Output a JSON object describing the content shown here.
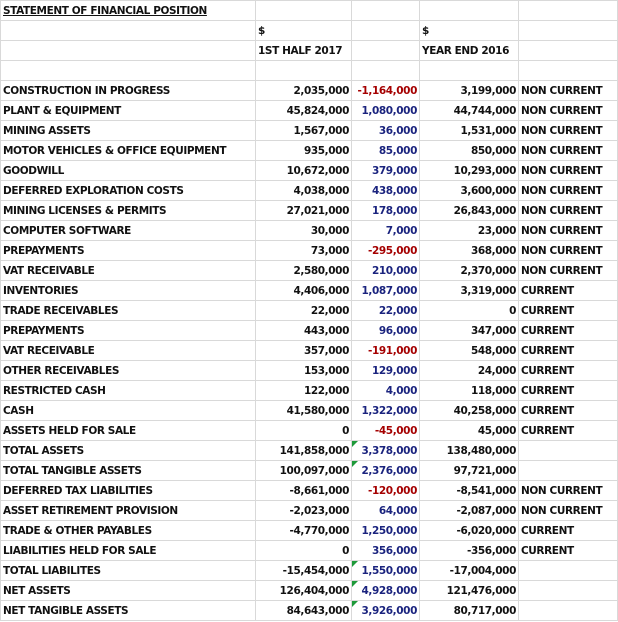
{
  "sheet": {
    "title": "STATEMENT OF FINANCIAL POSITION",
    "header_rows": [
      [
        null,
        "$",
        null,
        "$",
        null
      ],
      [
        null,
        "1ST HALF 2017",
        null,
        "YEAR END 2016",
        null
      ],
      [
        null,
        null,
        null,
        null,
        null
      ]
    ],
    "rows": [
      [
        "CONSTRUCTION IN PROGRESS",
        "2,035,000",
        "-1,164,000",
        "3,199,000",
        "NON CURRENT"
      ],
      [
        "PLANT & EQUIPMENT",
        "45,824,000",
        "1,080,000",
        "44,744,000",
        "NON CURRENT"
      ],
      [
        "MINING ASSETS",
        "1,567,000",
        "36,000",
        "1,531,000",
        "NON CURRENT"
      ],
      [
        "MOTOR VEHICLES & OFFICE EQUIPMENT",
        "935,000",
        "85,000",
        "850,000",
        "NON CURRENT"
      ],
      [
        "GOODWILL",
        "10,672,000",
        "379,000",
        "10,293,000",
        "NON CURRENT"
      ],
      [
        "DEFERRED EXPLORATION COSTS",
        "4,038,000",
        "438,000",
        "3,600,000",
        "NON CURRENT"
      ],
      [
        "MINING LICENSES & PERMITS",
        "27,021,000",
        "178,000",
        "26,843,000",
        "NON CURRENT"
      ],
      [
        "COMPUTER SOFTWARE",
        "30,000",
        "7,000",
        "23,000",
        "NON CURRENT"
      ],
      [
        "PREPAYMENTS",
        "73,000",
        "-295,000",
        "368,000",
        "NON CURRENT"
      ],
      [
        "VAT RECEIVABLE",
        "2,580,000",
        "210,000",
        "2,370,000",
        "NON CURRENT"
      ],
      [
        "INVENTORIES",
        "4,406,000",
        "1,087,000",
        "3,319,000",
        "CURRENT"
      ],
      [
        "TRADE RECEIVABLES",
        "22,000",
        "22,000",
        "0",
        "CURRENT"
      ],
      [
        "PREPAYMENTS",
        "443,000",
        "96,000",
        "347,000",
        "CURRENT"
      ],
      [
        "VAT RECEIVABLE",
        "357,000",
        "-191,000",
        "548,000",
        "CURRENT"
      ],
      [
        "OTHER RECEIVABLES",
        "153,000",
        "129,000",
        "24,000",
        "CURRENT"
      ],
      [
        "RESTRICTED CASH",
        "122,000",
        "4,000",
        "118,000",
        "CURRENT"
      ],
      [
        "CASH",
        "41,580,000",
        "1,322,000",
        "40,258,000",
        "CURRENT"
      ],
      [
        "ASSETS HELD FOR SALE",
        "0",
        "-45,000",
        "45,000",
        "CURRENT"
      ],
      [
        "TOTAL ASSETS",
        "141,858,000",
        "3,378,000",
        "138,480,000",
        null
      ],
      [
        "TOTAL TANGIBLE ASSETS",
        "100,097,000",
        "2,376,000",
        "97,721,000",
        null
      ],
      [
        "DEFERRED TAX LIABILITIES",
        "-8,661,000",
        "-120,000",
        "-8,541,000",
        "NON CURRENT"
      ],
      [
        "ASSET RETIREMENT PROVISION",
        "-2,023,000",
        "64,000",
        "-2,087,000",
        "NON CURRENT"
      ],
      [
        "TRADE & OTHER PAYABLES",
        "-4,770,000",
        "1,250,000",
        "-6,020,000",
        "CURRENT"
      ],
      [
        "LIABILITIES HELD FOR SALE",
        "0",
        "356,000",
        "-356,000",
        "CURRENT"
      ],
      [
        "TOTAL LIABILITES",
        "-15,454,000",
        "1,550,000",
        "-17,004,000",
        null
      ],
      [
        "NET ASSETS",
        "126,404,000",
        "4,928,000",
        "121,476,000",
        null
      ],
      [
        "NET TANGIBLE ASSETS",
        "84,643,000",
        "3,926,000",
        "80,717,000",
        null
      ]
    ]
  }
}
